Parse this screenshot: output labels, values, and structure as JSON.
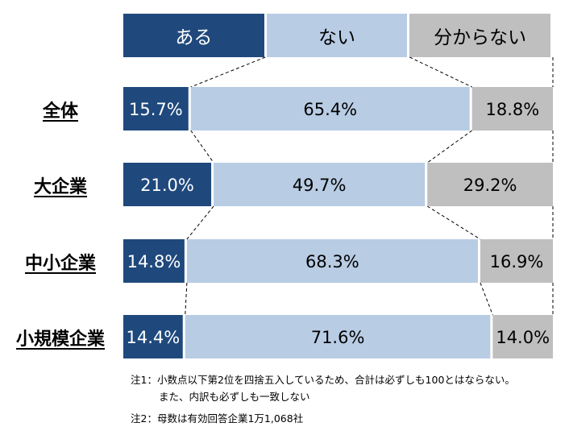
{
  "chart_data": {
    "type": "bar",
    "stacked": "100%",
    "orientation": "horizontal",
    "categories": [
      "全体",
      "大企業",
      "中小企業",
      "小規模企業"
    ],
    "series": [
      {
        "name": "ある",
        "values": [
          15.7,
          21.0,
          14.8,
          14.4
        ],
        "labels": [
          "15.7%",
          "21.0%",
          "14.8%",
          "14.4%"
        ],
        "color": "#1f497d",
        "text_color": "#ffffff"
      },
      {
        "name": "ない",
        "values": [
          65.4,
          49.7,
          68.3,
          71.6
        ],
        "labels": [
          "65.4%",
          "49.7%",
          "68.3%",
          "71.6%"
        ],
        "color": "#b8cce4",
        "text_color": "#000000"
      },
      {
        "name": "分からない",
        "values": [
          18.8,
          29.2,
          16.9,
          14.0
        ],
        "labels": [
          "18.8%",
          "29.2%",
          "16.9%",
          "14.0%"
        ],
        "color": "#bfbfbf",
        "text_color": "#000000"
      }
    ],
    "legend_position": "top",
    "connector_lines": "dashed"
  },
  "notes": {
    "note1_line1": "注1：小数点以下第2位を四捨五入しているため、合計は必ずしも100とはならない。",
    "note1_line2": "また、内訳も必ずしも一致しない",
    "note2": "注2：母数は有効回答企業1万1,068社"
  }
}
